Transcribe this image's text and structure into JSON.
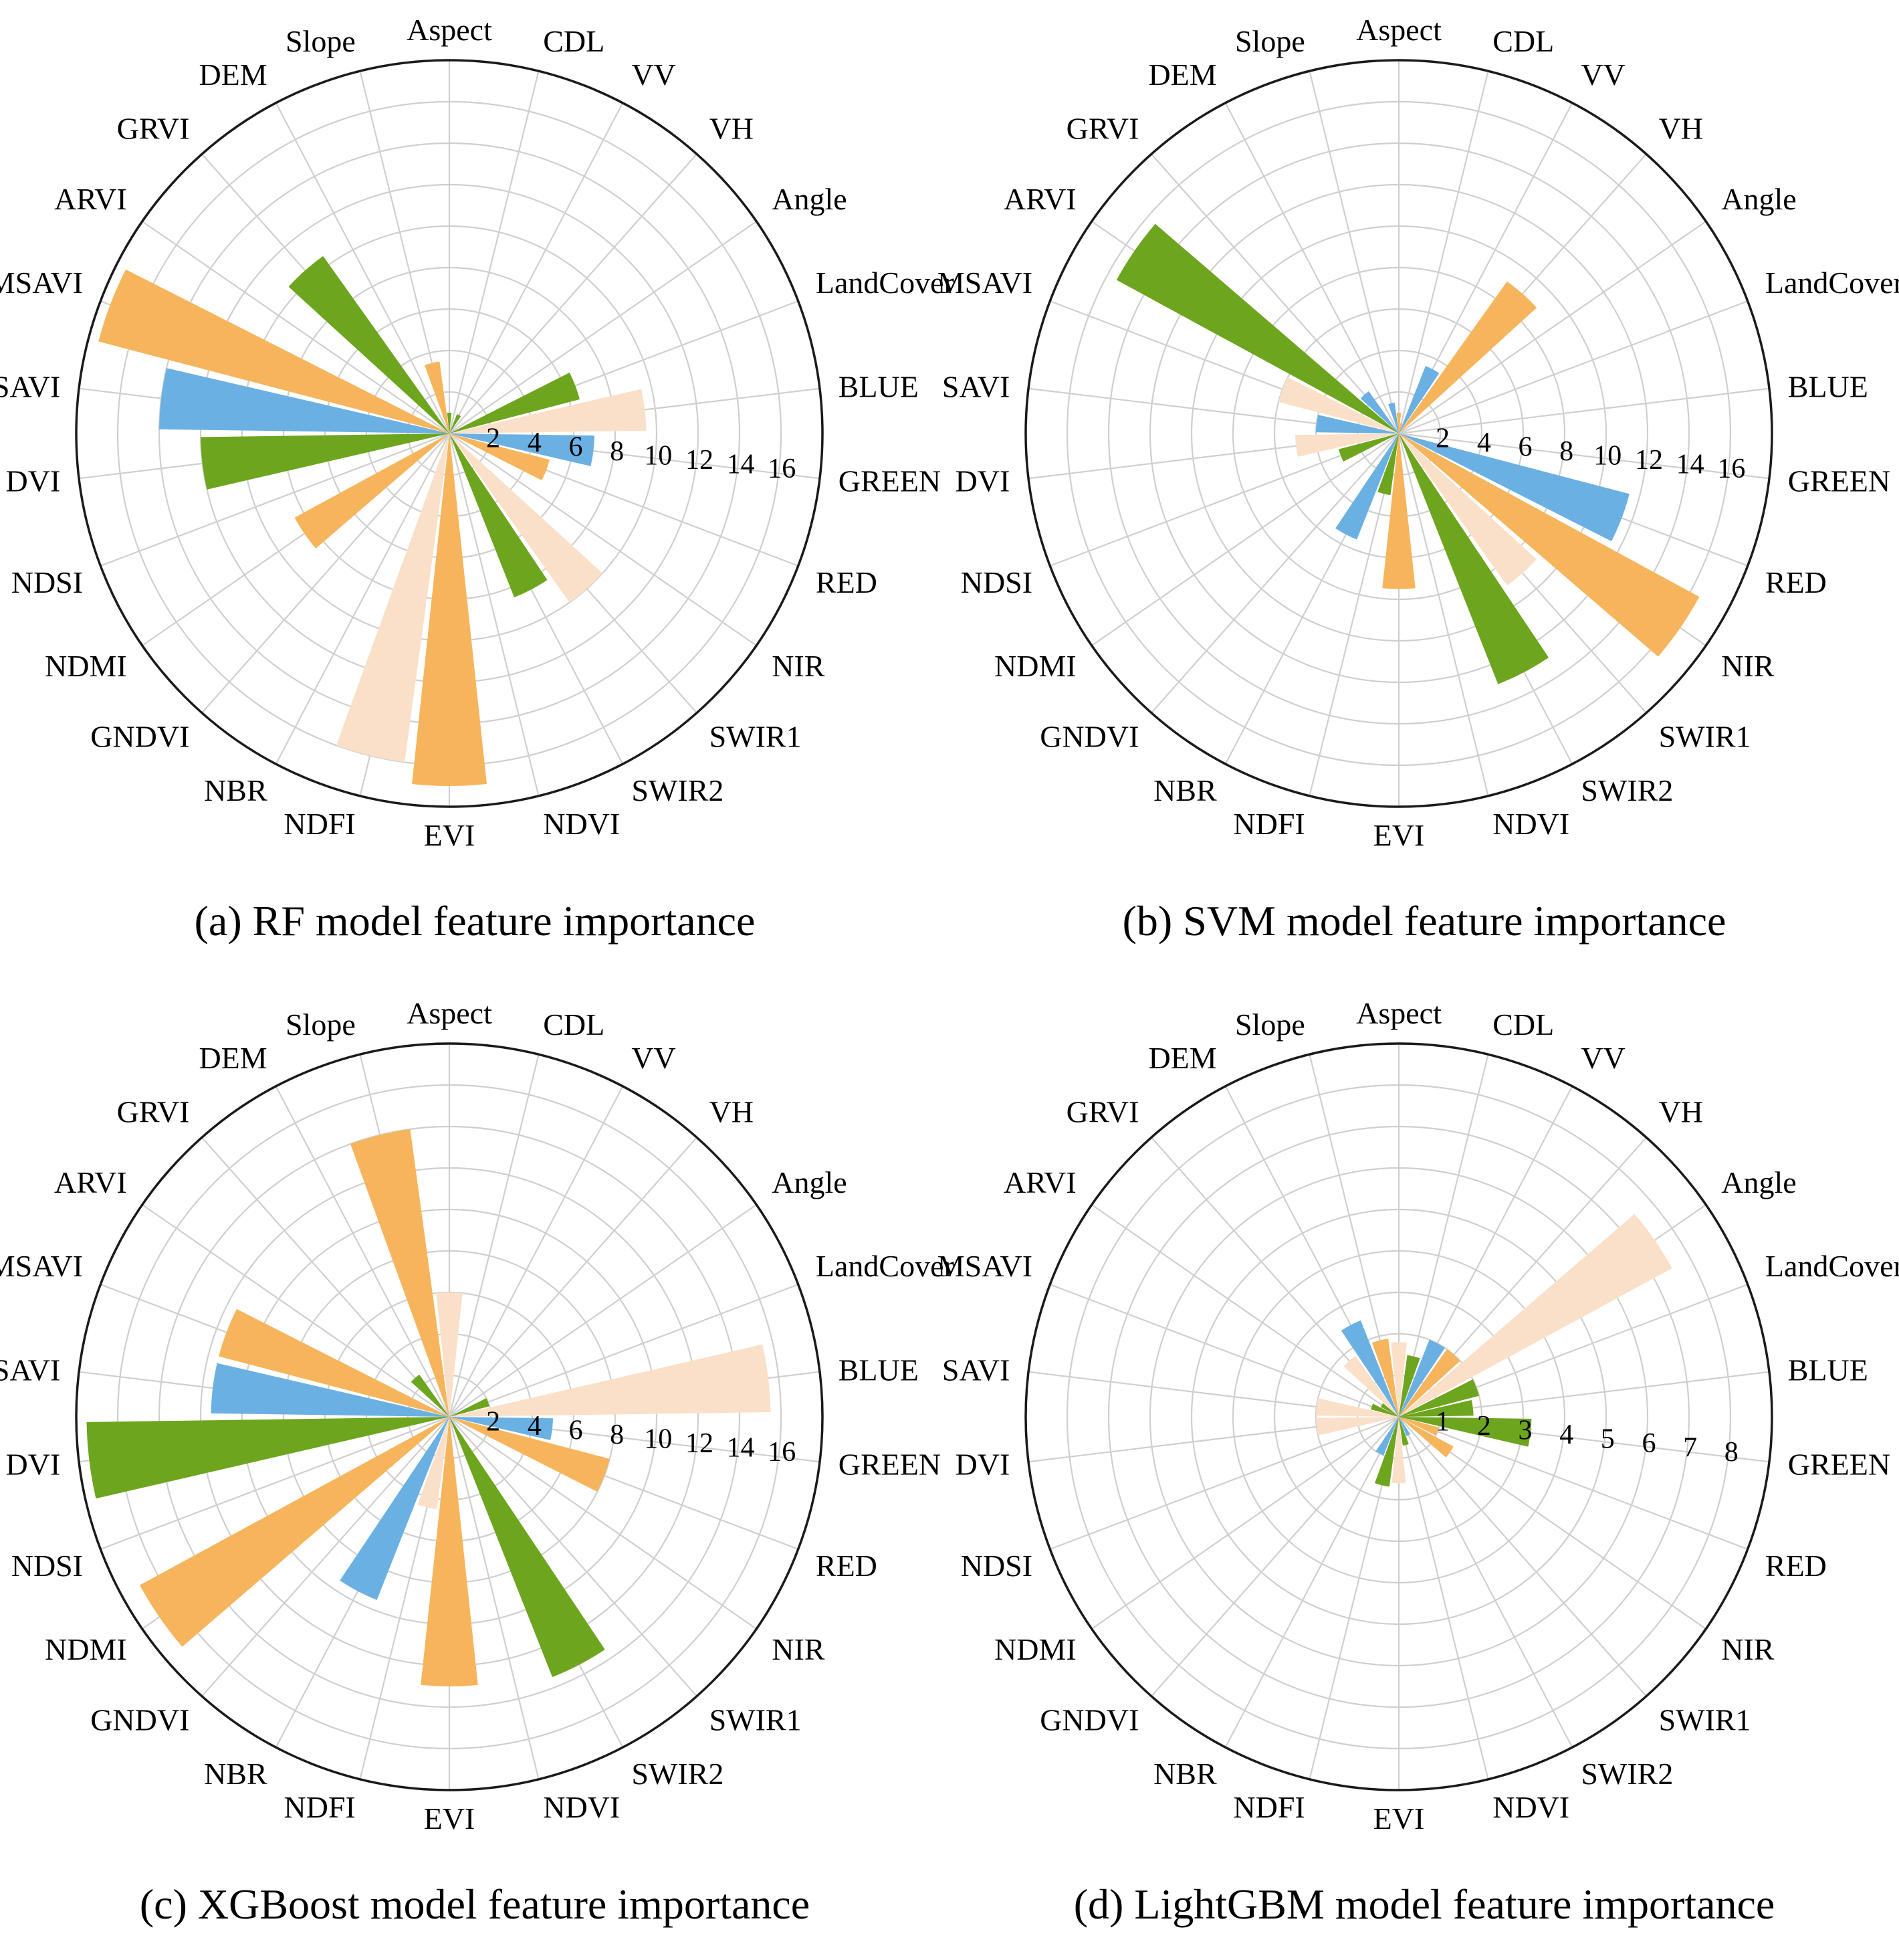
{
  "palette": {
    "green": "#6da51e",
    "blue": "#6ab0e3",
    "orange": "#f6b55c",
    "peach": "#fae0c9"
  },
  "chart_data": [
    {
      "type": "polar-bar",
      "title": "(a) RF model feature importance",
      "rmax": 18,
      "radial_ticks": [
        2,
        4,
        6,
        8,
        10,
        12,
        14,
        16
      ],
      "categories": [
        "Aspect",
        "CDL",
        "VV",
        "VH",
        "Angle",
        "LandCover",
        "BLUE",
        "GREEN",
        "RED",
        "NIR",
        "SWIR1",
        "SWIR2",
        "NDVI",
        "EVI",
        "NDFI",
        "NBR",
        "GNDVI",
        "NDMI",
        "NDSI",
        "DVI",
        "SAVI",
        "MSAVI",
        "ARVI",
        "GRVI",
        "DEM",
        "Slope"
      ],
      "colors": [
        "green",
        "peach",
        "green",
        "peach",
        "peach",
        "green",
        "peach",
        "blue",
        "orange",
        "peach",
        "peach",
        "green",
        "peach",
        "orange",
        "peach",
        "peach",
        "peach",
        "orange",
        "peach",
        "green",
        "blue",
        "orange",
        "peach",
        "green",
        "peach",
        "orange"
      ],
      "values": [
        1,
        0,
        1,
        0,
        0,
        6.5,
        9.5,
        7.0,
        5.0,
        0,
        10.0,
        8.5,
        0,
        17.0,
        16.0,
        0,
        0,
        8.5,
        0,
        12.0,
        14.0,
        17.5,
        0,
        10.5,
        0,
        3.5
      ]
    },
    {
      "type": "polar-bar",
      "title": "(b) SVM model feature importance",
      "rmax": 18,
      "radial_ticks": [
        2,
        4,
        6,
        8,
        10,
        12,
        14,
        16
      ],
      "categories": [
        "Aspect",
        "CDL",
        "VV",
        "VH",
        "Angle",
        "LandCover",
        "BLUE",
        "GREEN",
        "RED",
        "NIR",
        "SWIR1",
        "SWIR2",
        "NDVI",
        "EVI",
        "NDFI",
        "NBR",
        "GNDVI",
        "NDMI",
        "NDSI",
        "DVI",
        "SAVI",
        "MSAVI",
        "ARVI",
        "GRVI",
        "DEM",
        "Slope"
      ],
      "colors": [
        "orange",
        "orange",
        "blue",
        "orange",
        "orange",
        "peach",
        "peach",
        "peach",
        "blue",
        "orange",
        "peach",
        "green",
        "peach",
        "orange",
        "green",
        "blue",
        "peach",
        "peach",
        "green",
        "peach",
        "blue",
        "peach",
        "green",
        "blue",
        "peach",
        "blue"
      ],
      "values": [
        1,
        0.5,
        3.5,
        9.0,
        0,
        0,
        0,
        0,
        11.5,
        16.5,
        9.0,
        13.0,
        0,
        7.5,
        3.0,
        5.5,
        0,
        0,
        3.0,
        5.0,
        4.0,
        6.0,
        15.5,
        2.5,
        0,
        1.5
      ]
    },
    {
      "type": "polar-bar",
      "title": "(c) XGBoost model feature importance",
      "rmax": 18,
      "radial_ticks": [
        2,
        4,
        6,
        8,
        10,
        12,
        14,
        16
      ],
      "categories": [
        "Aspect",
        "CDL",
        "VV",
        "VH",
        "Angle",
        "LandCover",
        "BLUE",
        "GREEN",
        "RED",
        "NIR",
        "SWIR1",
        "SWIR2",
        "NDVI",
        "EVI",
        "NDFI",
        "NBR",
        "GNDVI",
        "NDMI",
        "NDSI",
        "DVI",
        "SAVI",
        "MSAVI",
        "ARVI",
        "GRVI",
        "DEM",
        "Slope"
      ],
      "colors": [
        "peach",
        "green",
        "peach",
        "peach",
        "peach",
        "green",
        "peach",
        "blue",
        "orange",
        "peach",
        "peach",
        "green",
        "peach",
        "orange",
        "peach",
        "blue",
        "peach",
        "orange",
        "peach",
        "green",
        "blue",
        "orange",
        "peach",
        "green",
        "orange",
        "orange"
      ],
      "values": [
        6.0,
        0,
        0,
        0,
        0,
        2.0,
        15.5,
        5.0,
        8.0,
        0,
        0,
        13.5,
        0,
        13.0,
        4.5,
        9.5,
        0,
        17.0,
        0,
        17.5,
        11.5,
        11.5,
        0,
        2.5,
        0,
        14.0
      ]
    },
    {
      "type": "polar-bar",
      "title": "(d) LightGBM model feature importance",
      "rmax": 9,
      "radial_ticks": [
        1,
        2,
        3,
        4,
        5,
        6,
        7,
        8
      ],
      "categories": [
        "Aspect",
        "CDL",
        "VV",
        "VH",
        "Angle",
        "LandCover",
        "BLUE",
        "GREEN",
        "RED",
        "NIR",
        "SWIR1",
        "SWIR2",
        "NDVI",
        "EVI",
        "NDFI",
        "NBR",
        "GNDVI",
        "NDMI",
        "NDSI",
        "DVI",
        "SAVI",
        "MSAVI",
        "ARVI",
        "GRVI",
        "DEM",
        "Slope"
      ],
      "colors": [
        "peach",
        "green",
        "blue",
        "orange",
        "peach",
        "green",
        "green",
        "green",
        "orange",
        "orange",
        "peach",
        "blue",
        "green",
        "peach",
        "green",
        "blue",
        "peach",
        "peach",
        "peach",
        "peach",
        "peach",
        "green",
        "green",
        "peach",
        "blue",
        "orange"
      ],
      "values": [
        1.8,
        1.5,
        2.0,
        2.0,
        7.5,
        2.0,
        1.8,
        3.2,
        1.0,
        1.5,
        0,
        0.5,
        0.7,
        1.6,
        1.7,
        1.0,
        0,
        0,
        0,
        2.0,
        2.0,
        0.7,
        0.5,
        1.8,
        2.5,
        1.9
      ]
    }
  ]
}
